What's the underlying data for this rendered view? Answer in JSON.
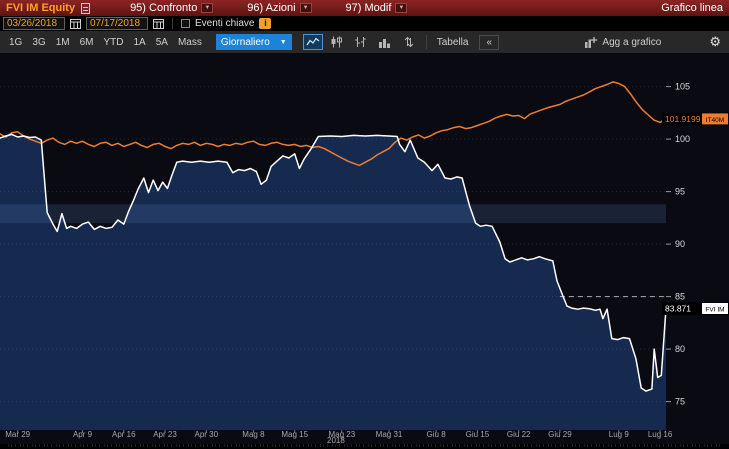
{
  "topbar": {
    "ticker": "FVI IM Equity",
    "title_right": "Grafico linea",
    "menu_items": [
      {
        "label": "95) Confronto"
      },
      {
        "label": "96) Azioni"
      },
      {
        "label": "97) Modif"
      }
    ],
    "caret": "▼"
  },
  "controls": {
    "date_from": "03/26/2018",
    "date_to": "07/17/2018",
    "events_label": "Eventi chiave",
    "info_glyph": "i"
  },
  "toolbar": {
    "range_buttons": [
      "1G",
      "3G",
      "1M",
      "6M",
      "YTD",
      "1A",
      "5A",
      "Mass"
    ],
    "frequency": "Giornaliero",
    "frequency_caret": "▼",
    "table_label": "Tabella",
    "collapse_label": "«",
    "add_to_chart_label": "Agg a grafico",
    "gear_glyph": "⚙"
  },
  "colors": {
    "plot_bg": "#0a0a13",
    "area_fill": "#16294e",
    "white_line": "#ffffff",
    "orange_line": "#ee7d30",
    "band_fill": "rgba(90,130,190,0.20)",
    "amber": "#ffa028",
    "highlight_blue": "#1d82d8"
  },
  "chart_data": {
    "type": "line",
    "x_unit": "trading days from 2018-03-26 to 2018-07-17",
    "ylim": [
      74,
      106.8
    ],
    "yticks": [
      75,
      80,
      85,
      90,
      95,
      100,
      105
    ],
    "grid": true,
    "legend_position": "right-axis-chips",
    "year_label": "2018",
    "x_ticks": [
      {
        "d": 3,
        "label": "Mar 29"
      },
      {
        "d": 14,
        "label": "Apr 9"
      },
      {
        "d": 21,
        "label": "Apr 16"
      },
      {
        "d": 28,
        "label": "Apr 23"
      },
      {
        "d": 35,
        "label": "Apr 30"
      },
      {
        "d": 43,
        "label": "Mag 8"
      },
      {
        "d": 50,
        "label": "Mag 15"
      },
      {
        "d": 58,
        "label": "Mag 23"
      },
      {
        "d": 66,
        "label": "Mag 31"
      },
      {
        "d": 74,
        "label": "Giu 8"
      },
      {
        "d": 81,
        "label": "Giu 15"
      },
      {
        "d": 88,
        "label": "Giu 22"
      },
      {
        "d": 95,
        "label": "Giu 29"
      },
      {
        "d": 105,
        "label": "Lug 9"
      },
      {
        "d": 112,
        "label": "Lug 16"
      }
    ],
    "highlight_band": {
      "from": 92.0,
      "to": 93.8
    },
    "dashed_level": {
      "value": 85.0,
      "from_day": 95
    },
    "series": [
      {
        "name": "FVI IM",
        "color": "#ffffff",
        "fill": true,
        "last_value_label": "83.871",
        "badge": "FVI IM",
        "points": [
          [
            0,
            100.1
          ],
          [
            1,
            100.3
          ],
          [
            2,
            100.45
          ],
          [
            3,
            100.2
          ],
          [
            4,
            100.3
          ],
          [
            5,
            100.15
          ],
          [
            6,
            100.2
          ],
          [
            7,
            99.9
          ],
          [
            7.5,
            96.5
          ],
          [
            8,
            93.0
          ],
          [
            9,
            91.9
          ],
          [
            9.7,
            91.2
          ],
          [
            10.5,
            92.9
          ],
          [
            11.3,
            91.5
          ],
          [
            12,
            91.7
          ],
          [
            13,
            91.5
          ],
          [
            14,
            91.9
          ],
          [
            15,
            92.1
          ],
          [
            16,
            91.4
          ],
          [
            17,
            91.7
          ],
          [
            18,
            91.5
          ],
          [
            19,
            91.6
          ],
          [
            20,
            92.3
          ],
          [
            21,
            91.9
          ],
          [
            21.8,
            93.1
          ],
          [
            22.6,
            94.1
          ],
          [
            23.4,
            95.2
          ],
          [
            24.4,
            96.3
          ],
          [
            25.2,
            94.9
          ],
          [
            26,
            96.1
          ],
          [
            26.8,
            95.1
          ],
          [
            27.6,
            95.9
          ],
          [
            28.4,
            95.3
          ],
          [
            29.2,
            96.6
          ],
          [
            30,
            97.8
          ],
          [
            31,
            97.9
          ],
          [
            32.5,
            97.8
          ],
          [
            34,
            97.9
          ],
          [
            35.5,
            97.8
          ],
          [
            37,
            97.9
          ],
          [
            38.5,
            97.8
          ],
          [
            39.5,
            96.8
          ],
          [
            40.5,
            97.1
          ],
          [
            41.5,
            97.0
          ],
          [
            42.5,
            97.2
          ],
          [
            43.5,
            96.9
          ],
          [
            44.3,
            95.7
          ],
          [
            45.2,
            96.1
          ],
          [
            46,
            97.4
          ],
          [
            47,
            97.9
          ],
          [
            48,
            98.4
          ],
          [
            49,
            98.2
          ],
          [
            50,
            98.6
          ],
          [
            50.8,
            97.2
          ],
          [
            51.6,
            98.1
          ],
          [
            52.8,
            99.1
          ],
          [
            54,
            100.25
          ],
          [
            56,
            100.3
          ],
          [
            58,
            100.25
          ],
          [
            60,
            100.35
          ],
          [
            62,
            100.3
          ],
          [
            64,
            100.35
          ],
          [
            66,
            100.3
          ],
          [
            67.4,
            100.25
          ],
          [
            67.8,
            99.5
          ],
          [
            68.7,
            98.8
          ],
          [
            69.6,
            99.9
          ],
          [
            70.9,
            98.2
          ],
          [
            72,
            97.8
          ],
          [
            73.3,
            97.0
          ],
          [
            74.3,
            97.6
          ],
          [
            75.5,
            96.3
          ],
          [
            76.5,
            96.2
          ],
          [
            77.5,
            96.4
          ],
          [
            78.4,
            96.3
          ],
          [
            79.7,
            93.6
          ],
          [
            80.7,
            92.0
          ],
          [
            81.5,
            91.7
          ],
          [
            82.5,
            91.8
          ],
          [
            83.5,
            91.7
          ],
          [
            84.8,
            90.2
          ],
          [
            85.7,
            88.6
          ],
          [
            86.5,
            88.3
          ],
          [
            87.5,
            88.5
          ],
          [
            88.5,
            88.7
          ],
          [
            89.5,
            88.5
          ],
          [
            90.5,
            88.6
          ],
          [
            91.5,
            88.8
          ],
          [
            92.5,
            88.6
          ],
          [
            93.8,
            88.4
          ],
          [
            94.5,
            86.5
          ],
          [
            95.4,
            85.2
          ],
          [
            96.2,
            84.1
          ],
          [
            97,
            83.9
          ],
          [
            98,
            83.8
          ],
          [
            99,
            83.9
          ],
          [
            100,
            83.85
          ],
          [
            101,
            83.7
          ],
          [
            101.8,
            83.8
          ],
          [
            102.3,
            82.9
          ],
          [
            103,
            83.8
          ],
          [
            103.8,
            81.0
          ],
          [
            104.8,
            80.9
          ],
          [
            105.8,
            81.1
          ],
          [
            106.8,
            81.0
          ],
          [
            107.9,
            79.1
          ],
          [
            108.8,
            76.3
          ],
          [
            109.6,
            76.0
          ],
          [
            110.6,
            76.2
          ],
          [
            111.0,
            80.0
          ],
          [
            111.6,
            77.3
          ],
          [
            112.2,
            77.5
          ],
          [
            113,
            83.871
          ]
        ]
      },
      {
        "name": "IT40M",
        "color": "#ee7d30",
        "fill": false,
        "last_value_label": "101.9199",
        "badge": "IT40M",
        "points": [
          [
            0,
            100.5
          ],
          [
            1,
            100.2
          ],
          [
            2,
            100.6
          ],
          [
            3,
            100.7
          ],
          [
            4,
            100.3
          ],
          [
            5,
            100.0
          ],
          [
            6,
            99.8
          ],
          [
            7,
            99.6
          ],
          [
            8,
            99.9
          ],
          [
            9,
            100.1
          ],
          [
            10,
            99.7
          ],
          [
            11,
            99.5
          ],
          [
            12,
            99.8
          ],
          [
            13,
            99.6
          ],
          [
            14,
            99.8
          ],
          [
            15,
            99.5
          ],
          [
            16,
            99.3
          ],
          [
            17,
            99.6
          ],
          [
            18,
            99.7
          ],
          [
            19,
            99.4
          ],
          [
            20,
            99.6
          ],
          [
            21,
            99.3
          ],
          [
            22,
            99.5
          ],
          [
            23,
            99.7
          ],
          [
            24,
            99.4
          ],
          [
            25,
            99.2
          ],
          [
            26,
            99.5
          ],
          [
            27,
            99.6
          ],
          [
            28,
            99.3
          ],
          [
            29,
            99.1
          ],
          [
            30,
            99.4
          ],
          [
            31,
            99.6
          ],
          [
            32,
            99.5
          ],
          [
            33,
            99.7
          ],
          [
            34,
            99.4
          ],
          [
            35,
            99.6
          ],
          [
            36,
            99.5
          ],
          [
            37,
            99.3
          ],
          [
            38,
            99.5
          ],
          [
            39,
            99.4
          ],
          [
            40,
            99.6
          ],
          [
            41,
            99.5
          ],
          [
            42,
            99.7
          ],
          [
            43,
            99.8
          ],
          [
            44,
            99.5
          ],
          [
            45,
            99.4
          ],
          [
            46,
            99.6
          ],
          [
            47,
            99.7
          ],
          [
            48,
            99.5
          ],
          [
            49,
            99.4
          ],
          [
            50,
            99.5
          ],
          [
            51,
            99.3
          ],
          [
            52,
            99.4
          ],
          [
            53,
            99.2
          ],
          [
            54,
            99.3
          ],
          [
            55,
            99.1
          ],
          [
            56,
            98.8
          ],
          [
            57,
            98.5
          ],
          [
            58,
            98.2
          ],
          [
            59,
            97.9
          ],
          [
            60,
            97.7
          ],
          [
            61,
            97.5
          ],
          [
            62,
            97.8
          ],
          [
            63,
            98.1
          ],
          [
            64,
            98.5
          ],
          [
            65,
            98.8
          ],
          [
            66,
            99.1
          ],
          [
            67,
            99.7
          ],
          [
            68,
            100.1
          ],
          [
            69,
            99.9
          ],
          [
            70,
            100.2
          ],
          [
            71,
            100.4
          ],
          [
            72,
            100.1
          ],
          [
            73,
            100.3
          ],
          [
            74,
            100.6
          ],
          [
            75,
            100.8
          ],
          [
            76,
            100.9
          ],
          [
            77,
            101.1
          ],
          [
            78,
            101.2
          ],
          [
            79,
            101.0
          ],
          [
            80,
            101.1
          ],
          [
            81,
            101.3
          ],
          [
            82,
            101.5
          ],
          [
            83,
            101.7
          ],
          [
            84,
            102.0
          ],
          [
            85,
            102.2
          ],
          [
            86,
            102.35
          ],
          [
            87,
            102.2
          ],
          [
            88,
            102.25
          ],
          [
            89,
            101.95
          ],
          [
            90,
            102.4
          ],
          [
            91,
            102.6
          ],
          [
            92,
            102.8
          ],
          [
            93,
            103.0
          ],
          [
            94,
            103.15
          ],
          [
            95,
            103.3
          ],
          [
            96,
            103.6
          ],
          [
            97,
            103.8
          ],
          [
            98,
            104.0
          ],
          [
            99,
            104.2
          ],
          [
            100,
            104.5
          ],
          [
            101,
            104.8
          ],
          [
            102,
            105.0
          ],
          [
            103,
            105.2
          ],
          [
            104,
            105.45
          ],
          [
            105,
            105.3
          ],
          [
            106,
            105.0
          ],
          [
            107,
            104.3
          ],
          [
            108,
            103.5
          ],
          [
            109,
            102.8
          ],
          [
            110,
            102.3
          ],
          [
            111,
            101.8
          ],
          [
            112,
            101.6
          ],
          [
            113,
            101.9199
          ]
        ]
      }
    ]
  }
}
